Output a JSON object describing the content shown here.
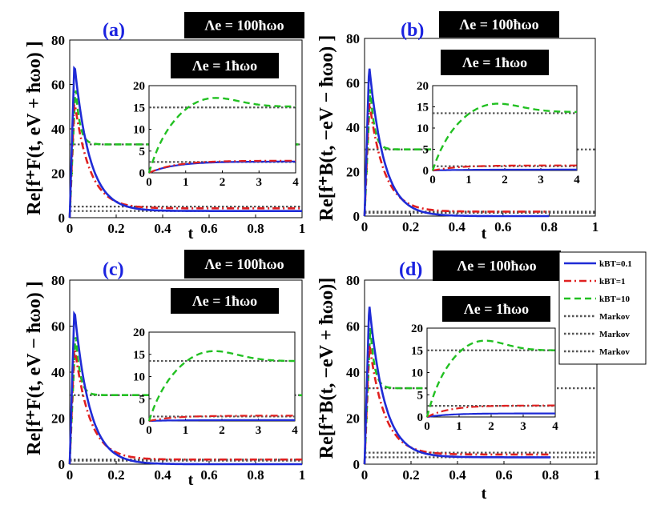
{
  "chart_data": [
    {
      "panel": "(a)",
      "type": "line",
      "ylabel": "Re[f_F^+(t, eV + ħω_o)]",
      "ylabel_text": "Re[f⁺F(t, eV + ħωo) ]",
      "xlabel": "t",
      "xlim": [
        0,
        1
      ],
      "ylim": [
        0,
        80
      ],
      "xticks": [
        "0",
        "0.2",
        "0.4",
        "0.6",
        "0.8",
        "1"
      ],
      "yticks": [
        "0",
        "20",
        "40",
        "60",
        "80"
      ],
      "top_box": "Λe = 100ħωo",
      "main": {
        "peaks": [
          70,
          53,
          60
        ],
        "tails": [
          3,
          4.2,
          33
        ],
        "markov": [
          5,
          3,
          33
        ]
      },
      "inset": {
        "label": "Λe = 1ħωo",
        "xlim": [
          0,
          4
        ],
        "ylim": [
          0,
          20
        ],
        "xticks": [
          "0",
          "1",
          "2",
          "3",
          "4"
        ],
        "yticks": [
          "0",
          "5",
          "10",
          "15",
          "20"
        ],
        "markov": [
          15,
          2.5
        ],
        "green_max": 18,
        "green_end": 15.2,
        "blue_end": 2.6,
        "red_end": 2.8
      }
    },
    {
      "panel": "(b)",
      "type": "line",
      "ylabel": "Re[f_B^+(t, −eV − ħω_o)]",
      "ylabel_text": "Re[f⁺B(t, −eV − ħωo) ]",
      "xlabel": "t",
      "xlim": [
        0,
        1
      ],
      "ylim": [
        0,
        80
      ],
      "xticks": [
        "0",
        "0.2",
        "0.4",
        "0.6",
        "0.8",
        "1"
      ],
      "yticks": [
        "0",
        "20",
        "40",
        "60",
        "80"
      ],
      "top_box": "Λe = 100ħωo",
      "main": {
        "peaks": [
          68,
          52,
          58
        ],
        "tails": [
          0,
          2,
          30
        ],
        "markov": [
          2,
          1.5,
          30
        ]
      },
      "inset": {
        "label": "Λe = 1ħωo",
        "xlim": [
          0,
          4
        ],
        "ylim": [
          0,
          20
        ],
        "xticks": [
          "0",
          "1",
          "2",
          "3",
          "4"
        ],
        "yticks": [
          "0",
          "5",
          "10",
          "15",
          "20"
        ],
        "markov": [
          13.5,
          1
        ],
        "green_max": 16.5,
        "green_end": 13.8,
        "blue_end": 0.2,
        "red_end": 1.2
      }
    },
    {
      "panel": "(c)",
      "type": "line",
      "ylabel": "Re[f_F^+(t, eV − ħω_o)]",
      "ylabel_text": "Re[f⁺F(t, eV − ħωo) ]",
      "xlabel": "t",
      "xlim": [
        0,
        1
      ],
      "ylim": [
        0,
        80
      ],
      "xticks": [
        "0",
        "0.2",
        "0.4",
        "0.6",
        "0.8",
        "1"
      ],
      "yticks": [
        "0",
        "20",
        "40",
        "60",
        "80"
      ],
      "top_box": "Λe = 100ħωo",
      "main": {
        "peaks": [
          68,
          52,
          58
        ],
        "tails": [
          0,
          2,
          30
        ],
        "markov": [
          2,
          1.5,
          30
        ]
      },
      "inset": {
        "label": "Λe = 1ħωo",
        "xlim": [
          0,
          4
        ],
        "ylim": [
          0,
          20
        ],
        "xticks": [
          "0",
          "1",
          "2",
          "3",
          "4"
        ],
        "yticks": [
          "0",
          "5",
          "10",
          "15",
          "20"
        ],
        "markov": [
          13.5,
          1
        ],
        "green_max": 16.5,
        "green_end": 13.5,
        "blue_end": 0.2,
        "red_end": 1.2
      }
    },
    {
      "panel": "(d)",
      "type": "line",
      "ylabel": "Re[f_B^+(t, −eV + ħω_o)]",
      "ylabel_text": "Re[f⁺B(t, −eV + ħωo)]",
      "xlabel": "t",
      "xlim": [
        0,
        1
      ],
      "ylim": [
        0,
        80
      ],
      "xticks": [
        "0",
        "0.2",
        "0.4",
        "0.6",
        "0.8",
        "1"
      ],
      "yticks": [
        "0",
        "20",
        "40",
        "60",
        "80"
      ],
      "top_box": "Λe = 100ħωo",
      "main": {
        "peaks": [
          70,
          53,
          60
        ],
        "tails": [
          3,
          4.2,
          33
        ],
        "markov": [
          5,
          3,
          33
        ]
      },
      "inset": {
        "label": "Λe = 1ħωo",
        "xlim": [
          0,
          4
        ],
        "ylim": [
          0,
          20
        ],
        "xticks": [
          "0",
          "1",
          "2",
          "3",
          "4"
        ],
        "yticks": [
          "0",
          "5",
          "10",
          "15",
          "20"
        ],
        "markov": [
          15,
          2.5
        ],
        "green_max": 18,
        "green_end": 15,
        "blue_end": 0.8,
        "red_end": 2.6
      }
    }
  ],
  "legend": [
    {
      "label": "kBT=0.1",
      "color": "#1f2bd6",
      "dash": "solid"
    },
    {
      "label": "kBT=1",
      "color": "#e02020",
      "dash": "dashdot"
    },
    {
      "label": "kBT=10",
      "color": "#22c022",
      "dash": "dash"
    },
    {
      "label": "Markov",
      "color": "#555555",
      "dash": "dot"
    },
    {
      "label": "Markov",
      "color": "#555555",
      "dash": "dot"
    },
    {
      "label": "Markov",
      "color": "#555555",
      "dash": "dot"
    }
  ],
  "colors": {
    "blue": "#1f2bd6",
    "red": "#e02020",
    "green": "#22c022",
    "markov": "#555555",
    "panel_label": "#1a22e0"
  }
}
